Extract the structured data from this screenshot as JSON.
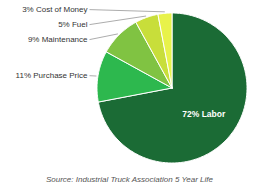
{
  "chart_data": {
    "type": "pie",
    "categories": [
      "72% Labor",
      "11% Purchase Price",
      "9% Maintenance",
      "5% Fuel",
      "3% Cost of Money"
    ],
    "values": [
      72,
      11,
      9,
      5,
      3
    ],
    "colors": [
      "#1b6b35",
      "#2db84e",
      "#80c342",
      "#c8de3a",
      "#e8f24a"
    ],
    "annotations": [
      "Source: Industrial Truck Association 5 Year Life"
    ]
  }
}
